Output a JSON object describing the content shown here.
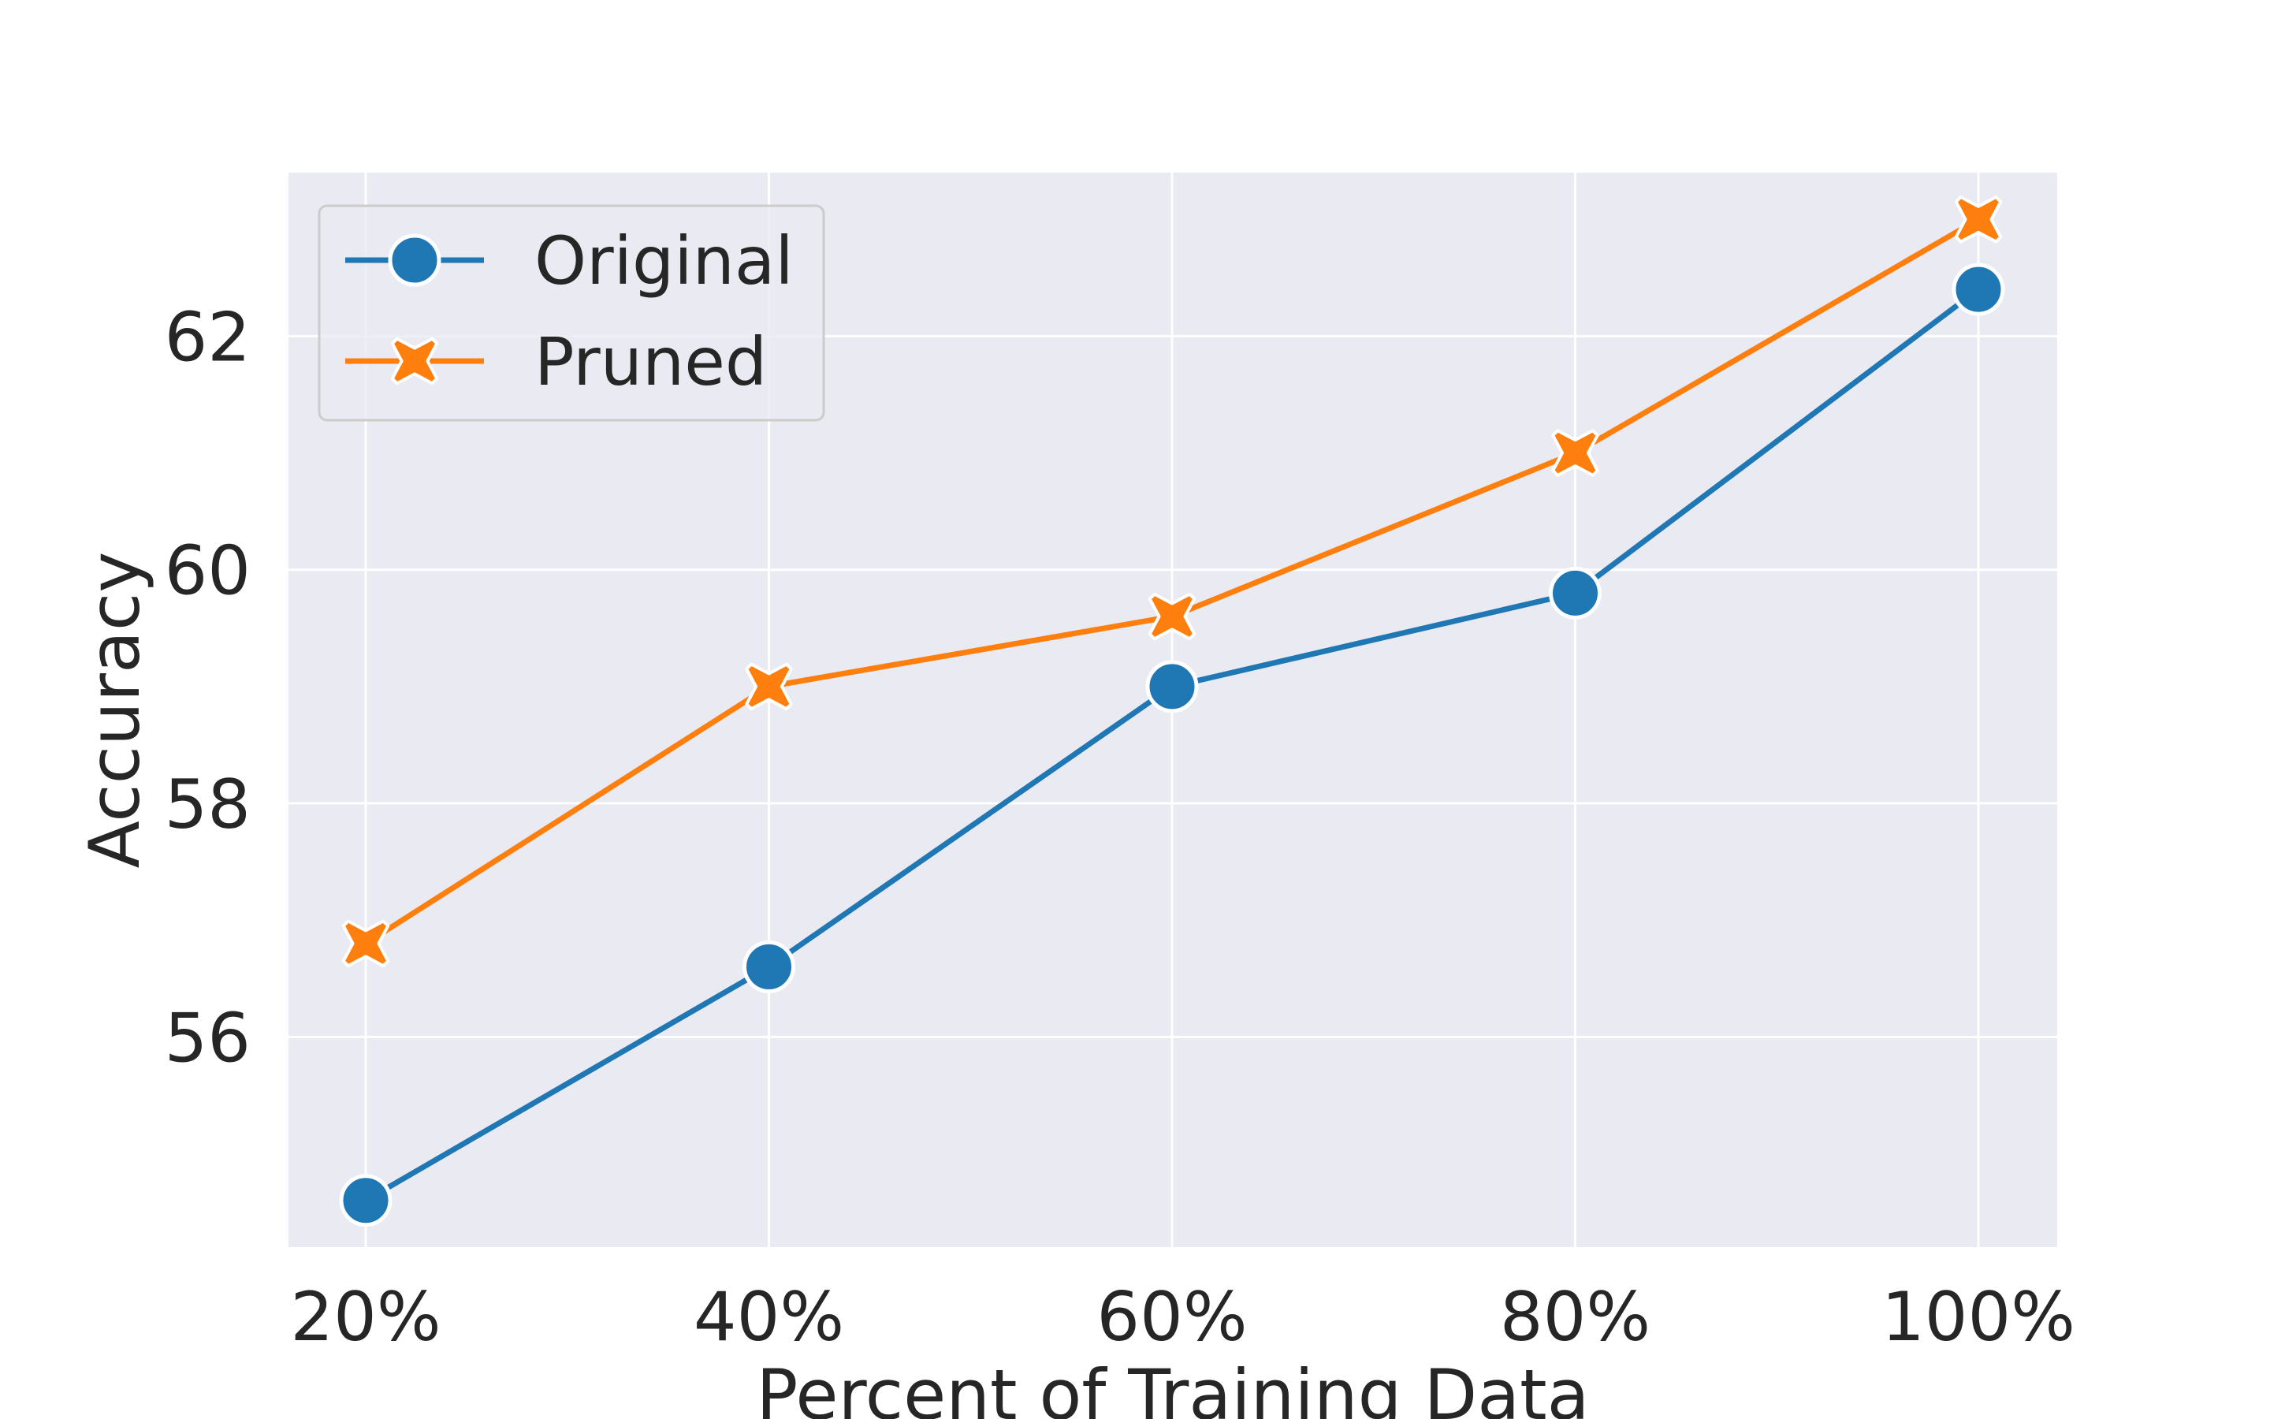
{
  "chart_data": {
    "type": "line",
    "title": "",
    "xlabel": "Percent of Training Data",
    "ylabel": "Accuracy",
    "categories": [
      "20%",
      "40%",
      "60%",
      "80%",
      "100%"
    ],
    "yticks": [
      56,
      58,
      60,
      62
    ],
    "ylim": [
      54.2,
      63.4
    ],
    "grid": true,
    "legend_position": "top-left",
    "series": [
      {
        "name": "Original",
        "values": [
          54.6,
          56.6,
          59.0,
          59.8,
          62.4
        ],
        "color": "#1f77b4",
        "marker": "circle"
      },
      {
        "name": "Pruned",
        "values": [
          56.8,
          59.0,
          59.6,
          61.0,
          63.0
        ],
        "color": "#ff7f0e",
        "marker": "x"
      }
    ],
    "colors": {
      "plot_background": "#eaeaf2",
      "grid": "#ffffff"
    }
  }
}
